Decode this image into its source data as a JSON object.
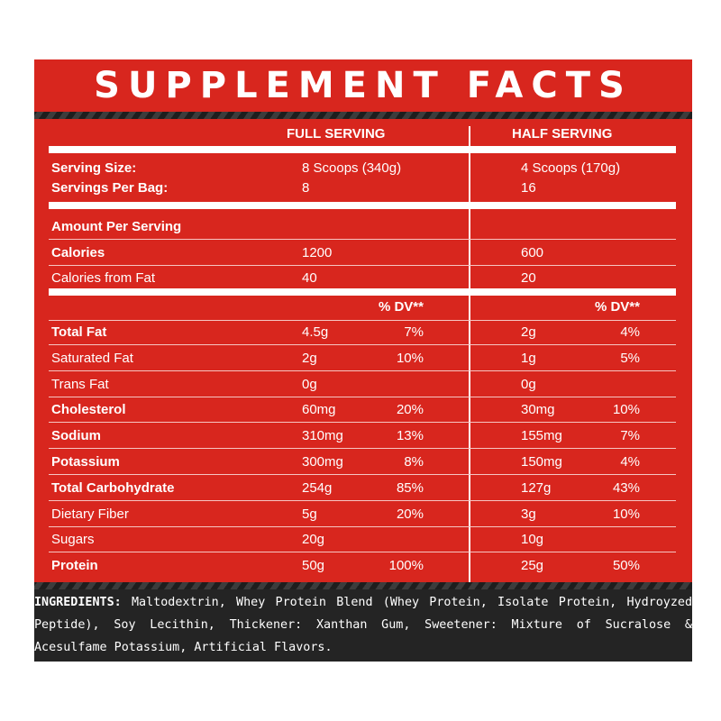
{
  "title": "SUPPLEMENT FACTS",
  "columns": {
    "full": "FULL SERVING",
    "half": "HALF SERVING"
  },
  "serving": {
    "size_label": "Serving Size:",
    "size_full": "8 Scoops (340g)",
    "size_half": "4 Scoops (170g)",
    "per_bag_label": "Servings Per Bag:",
    "per_bag_full": "8",
    "per_bag_half": "16"
  },
  "amount_per_serving": "Amount Per Serving",
  "calories": {
    "label": "Calories",
    "full": "1200",
    "half": "600"
  },
  "calories_fat": {
    "label": "Calories from Fat",
    "full": "40",
    "half": "20"
  },
  "dv_header": "% DV**",
  "nutrients": [
    {
      "name": "Total Fat",
      "bold": true,
      "full": "4.5g",
      "full_dv": "7%",
      "half": "2g",
      "half_dv": "4%"
    },
    {
      "name": "Saturated Fat",
      "bold": false,
      "full": "2g",
      "full_dv": "10%",
      "half": "1g",
      "half_dv": "5%"
    },
    {
      "name": "Trans Fat",
      "bold": false,
      "full": "0g",
      "full_dv": "",
      "half": "0g",
      "half_dv": ""
    },
    {
      "name": "Cholesterol",
      "bold": true,
      "full": "60mg",
      "full_dv": "20%",
      "half": "30mg",
      "half_dv": "10%"
    },
    {
      "name": "Sodium",
      "bold": true,
      "full": "310mg",
      "full_dv": "13%",
      "half": "155mg",
      "half_dv": "7%"
    },
    {
      "name": "Potassium",
      "bold": true,
      "full": "300mg",
      "full_dv": "8%",
      "half": "150mg",
      "half_dv": "4%"
    },
    {
      "name": "Total Carbohydrate",
      "bold": true,
      "full": "254g",
      "full_dv": "85%",
      "half": "127g",
      "half_dv": "43%"
    },
    {
      "name": "Dietary Fiber",
      "bold": false,
      "full": "5g",
      "full_dv": "20%",
      "half": "3g",
      "half_dv": "10%"
    },
    {
      "name": "Sugars",
      "bold": false,
      "full": "20g",
      "full_dv": "",
      "half": "10g",
      "half_dv": ""
    },
    {
      "name": "Protein",
      "bold": true,
      "full": "50g",
      "full_dv": "100%",
      "half": "25g",
      "half_dv": "50%"
    }
  ],
  "ingredients": {
    "label": "INGREDIENTS:",
    "text": "Maltodextrin, Whey Protein Blend (Whey Protein, Isolate Protein, Hydroyzed Peptide), Soy Lecithin, Thickener: Xanthan Gum, Sweetener: Mixture of Sucralose & Acesulfame Potassium, Artificial Flavors."
  }
}
